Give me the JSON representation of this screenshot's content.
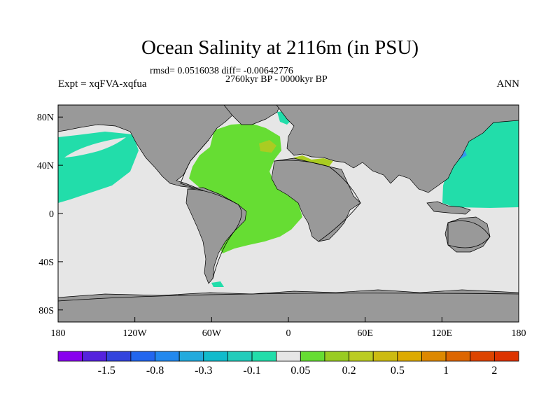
{
  "title": "Ocean Salinity at 2116m (in PSU)",
  "subtitle": "rmsd= 0.0516038 diff= -0.00642776",
  "time_range": "2760kyr BP - 0000kyr BP",
  "left_label": "Expt = xqFVA-xqfua",
  "right_label": "ANN",
  "map": {
    "projection": "cylindrical-equidistant",
    "lon_range": [
      -180,
      180
    ],
    "lat_range": [
      -90,
      90
    ],
    "x_ticks": [
      "180",
      "120W",
      "60W",
      "0",
      "60E",
      "120E",
      "180"
    ],
    "y_ticks": [
      "80N",
      "40N",
      "0",
      "40S",
      "80S"
    ],
    "colors": {
      "land": "#999999",
      "near_zero": "#e6e6e6",
      "atlantic_positive": "#66dd33",
      "pacific_negative": "#22ddaa",
      "med_positive": "#aacc22",
      "small_negative": "#3399ee"
    }
  },
  "colorbar": {
    "colors": [
      "#8800ee",
      "#5522dd",
      "#3344dd",
      "#2266ee",
      "#2288ee",
      "#22aadd",
      "#11bbcc",
      "#22ccbb",
      "#22ddaa",
      "#e6e6e6",
      "#66dd33",
      "#99cc22",
      "#bbcc22",
      "#ccbb11",
      "#ddaa00",
      "#dd8800",
      "#dd6600",
      "#dd4400",
      "#dd3300"
    ],
    "labels": [
      "-1.5",
      "-0.8",
      "-0.3",
      "-0.1",
      "0.05",
      "0.2",
      "0.5",
      "1",
      "2"
    ]
  }
}
